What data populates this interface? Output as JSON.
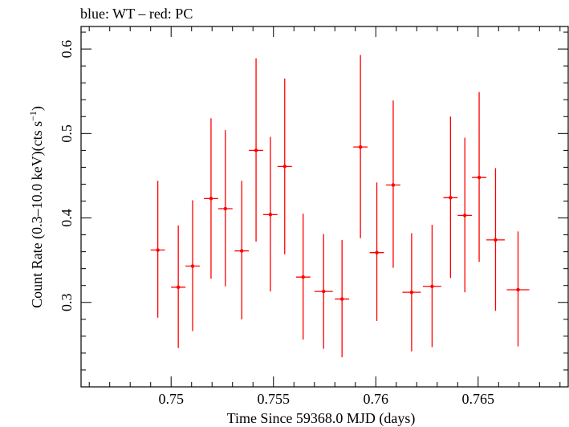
{
  "chart_data": {
    "type": "scatter",
    "title": "blue: WT – red: PC",
    "xlabel": "Time Since 59368.0 MJD (days)",
    "ylabel_main": "Count Rate (0.3–10.0 keV)(cts s",
    "ylabel_sup": "−1",
    "ylabel_close": ")",
    "xlim": [
      0.7456,
      0.7694
    ],
    "ylim": [
      0.2,
      0.6267
    ],
    "x_major_ticks": [
      0.75,
      0.755,
      0.76,
      0.765
    ],
    "x_tick_labels": [
      "0.75",
      "0.755",
      "0.76",
      "0.765"
    ],
    "x_minor_step": 0.001,
    "y_major_ticks": [
      0.3,
      0.4,
      0.5,
      0.6
    ],
    "y_tick_labels": [
      "0.3",
      "0.4",
      "0.5",
      "0.6"
    ],
    "y_minor_step": 0.02,
    "grid": false,
    "series": [
      {
        "color": "#ff0000",
        "points": [
          {
            "x": 0.74935,
            "xerr": 0.00035,
            "y": 0.362,
            "ylo": 0.282,
            "yhi": 0.444
          },
          {
            "x": 0.75035,
            "xerr": 0.00035,
            "y": 0.318,
            "ylo": 0.246,
            "yhi": 0.391
          },
          {
            "x": 0.75105,
            "xerr": 0.00035,
            "y": 0.343,
            "ylo": 0.266,
            "yhi": 0.421
          },
          {
            "x": 0.75195,
            "xerr": 0.00035,
            "y": 0.423,
            "ylo": 0.328,
            "yhi": 0.518
          },
          {
            "x": 0.75265,
            "xerr": 0.00035,
            "y": 0.411,
            "ylo": 0.319,
            "yhi": 0.504
          },
          {
            "x": 0.75345,
            "xerr": 0.00035,
            "y": 0.361,
            "ylo": 0.28,
            "yhi": 0.444
          },
          {
            "x": 0.75415,
            "xerr": 0.00035,
            "y": 0.48,
            "ylo": 0.372,
            "yhi": 0.589
          },
          {
            "x": 0.75485,
            "xerr": 0.00035,
            "y": 0.404,
            "ylo": 0.313,
            "yhi": 0.496
          },
          {
            "x": 0.75555,
            "xerr": 0.00035,
            "y": 0.461,
            "ylo": 0.357,
            "yhi": 0.565
          },
          {
            "x": 0.75645,
            "xerr": 0.00035,
            "y": 0.33,
            "ylo": 0.256,
            "yhi": 0.405
          },
          {
            "x": 0.75745,
            "xerr": 0.00045,
            "y": 0.313,
            "ylo": 0.245,
            "yhi": 0.381
          },
          {
            "x": 0.75835,
            "xerr": 0.00035,
            "y": 0.304,
            "ylo": 0.235,
            "yhi": 0.374
          },
          {
            "x": 0.75925,
            "xerr": 0.00035,
            "y": 0.484,
            "ylo": 0.376,
            "yhi": 0.593
          },
          {
            "x": 0.76005,
            "xerr": 0.00035,
            "y": 0.359,
            "ylo": 0.278,
            "yhi": 0.442
          },
          {
            "x": 0.76085,
            "xerr": 0.00035,
            "y": 0.439,
            "ylo": 0.341,
            "yhi": 0.539
          },
          {
            "x": 0.76175,
            "xerr": 0.00045,
            "y": 0.312,
            "ylo": 0.242,
            "yhi": 0.382
          },
          {
            "x": 0.76275,
            "xerr": 0.00045,
            "y": 0.319,
            "ylo": 0.247,
            "yhi": 0.392
          },
          {
            "x": 0.76365,
            "xerr": 0.00035,
            "y": 0.424,
            "ylo": 0.329,
            "yhi": 0.52
          },
          {
            "x": 0.76435,
            "xerr": 0.00035,
            "y": 0.403,
            "ylo": 0.312,
            "yhi": 0.495
          },
          {
            "x": 0.76505,
            "xerr": 0.00035,
            "y": 0.448,
            "ylo": 0.348,
            "yhi": 0.549
          },
          {
            "x": 0.76585,
            "xerr": 0.00045,
            "y": 0.374,
            "ylo": 0.29,
            "yhi": 0.459
          },
          {
            "x": 0.76695,
            "xerr": 0.00055,
            "y": 0.315,
            "ylo": 0.248,
            "yhi": 0.384
          }
        ]
      }
    ]
  }
}
